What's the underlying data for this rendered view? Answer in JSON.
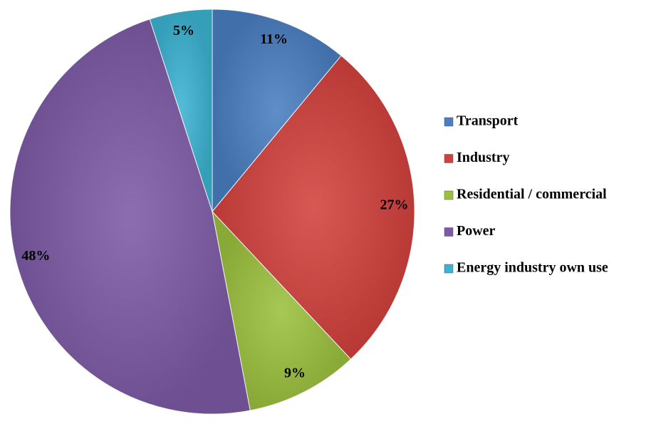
{
  "chart_data": {
    "type": "pie",
    "categories": [
      "Transport",
      "Industry",
      "Residential / commercial",
      "Power",
      "Energy industry own use"
    ],
    "values": [
      11,
      27,
      9,
      48,
      5
    ],
    "value_labels": [
      "11%",
      "27%",
      "9%",
      "48%",
      "5%"
    ],
    "colors": [
      "#4a7ec0",
      "#d2413d",
      "#9cc03e",
      "#7c5aa6",
      "#3cb3d2"
    ],
    "legend": "right"
  }
}
